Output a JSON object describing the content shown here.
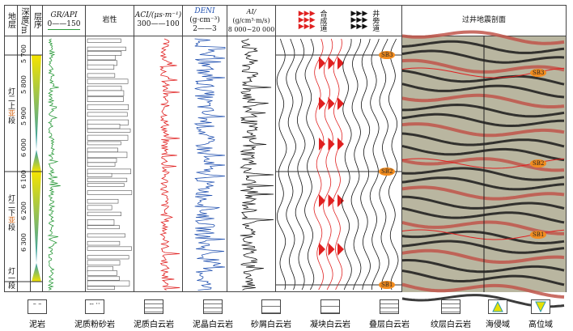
{
  "header": {
    "strata": "地层",
    "depth": "深度/m",
    "sequence": "层序",
    "gr": "GR/API",
    "gr_scale": "0——150",
    "lith": "岩性",
    "aci": "ACI/(μs·m⁻¹)",
    "aci_scale": "300——100",
    "deni": "DENI",
    "deni_unit": "(g·cm⁻³)",
    "deni_scale": "2——3",
    "ai": "AI/",
    "ai_unit": "(g/cm³·m/s)",
    "ai_scale": "8 000~20 000",
    "synthetic": "合成道",
    "welltrace": "井旁道",
    "seismic": "过井地震剖面"
  },
  "depths": [
    "5 700",
    "5 800",
    "5 900",
    "6 000",
    "6 100",
    "6 200",
    "6 300"
  ],
  "strata": [
    {
      "a": "灯二上",
      "b": "亚",
      "c": "段"
    },
    {
      "a": "灯二下",
      "b": "亚",
      "c": "段"
    },
    {
      "a": "灯一",
      "b": "",
      "c": "段"
    }
  ],
  "sb": [
    "SB3",
    "SB2",
    "SB1"
  ],
  "legend": [
    "泥岩",
    "泥质粉砂岩",
    "泥质白云岩",
    "泥晶白云岩",
    "砂屑白云岩",
    "凝块白云岩",
    "叠层白云岩",
    "纹层白云岩",
    "海侵域",
    "高位域"
  ],
  "colors": {
    "gr": "#2a9a3a",
    "aci": "#e02020",
    "deni": "#2050b0",
    "ai": "#111111",
    "sb": "#f28c1f",
    "tri_top": "#f5e400",
    "tri_bot": "#2a9ab0"
  }
}
